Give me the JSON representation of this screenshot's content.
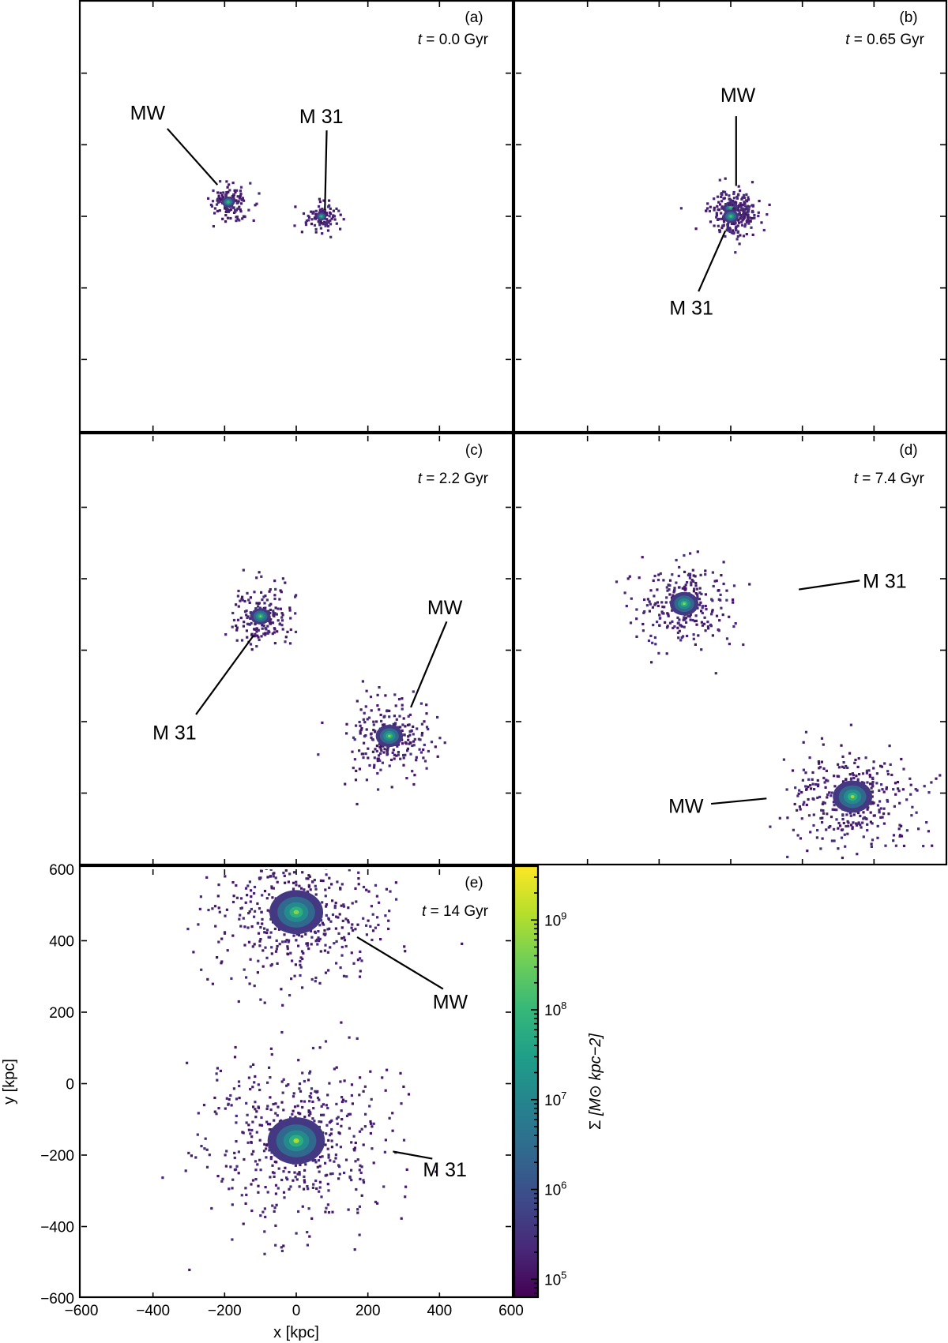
{
  "chart_data": [
    {
      "panel": "a",
      "type": "heatmap",
      "panel_label": "(a)",
      "time_label": "t = 0.0 Gyr",
      "time_var": "t",
      "time_value": "0.0",
      "time_unit": "Gyr",
      "xlim": [
        -600,
        600
      ],
      "ylim": [
        -600,
        600
      ],
      "galaxies": [
        {
          "name": "MW",
          "x": -190,
          "y": 40,
          "extent": 18,
          "peak": 8.0
        },
        {
          "name": "M 31",
          "x": 70,
          "y": 0,
          "extent": 14,
          "peak": 8.0
        }
      ],
      "annotations": [
        {
          "text": "MW",
          "text_x": -415,
          "text_y": 290,
          "line_from": [
            -360,
            245
          ],
          "line_to": [
            -220,
            88
          ]
        },
        {
          "text": "M 31",
          "text_x": 70,
          "text_y": 280,
          "line_from": [
            85,
            240
          ],
          "line_to": [
            80,
            18
          ]
        }
      ]
    },
    {
      "panel": "b",
      "type": "heatmap",
      "panel_label": "(b)",
      "time_label": "t = 0.65 Gyr",
      "time_var": "t",
      "time_value": "0.65",
      "time_unit": "Gyr",
      "xlim": [
        -600,
        600
      ],
      "ylim": [
        -600,
        600
      ],
      "galaxies": [
        {
          "name": "MW",
          "x": 0,
          "y": 25,
          "extent": 20,
          "peak": 8.3
        },
        {
          "name": "M 31",
          "x": 0,
          "y": 0,
          "extent": 22,
          "peak": 8.3
        }
      ],
      "annotations": [
        {
          "text": "MW",
          "text_x": 20,
          "text_y": 340,
          "line_from": [
            15,
            280
          ],
          "line_to": [
            15,
            85
          ]
        },
        {
          "text": "M 31",
          "text_x": -110,
          "text_y": -255,
          "line_from": [
            -90,
            -210
          ],
          "line_to": [
            -15,
            -40
          ]
        }
      ]
    },
    {
      "panel": "c",
      "type": "heatmap",
      "panel_label": "(c)",
      "time_label": "t = 2.2 Gyr",
      "time_var": "t",
      "time_value": "2.2",
      "time_unit": "Gyr",
      "xlim": [
        -600,
        600
      ],
      "ylim": [
        -600,
        600
      ],
      "galaxies": [
        {
          "name": "M 31",
          "x": -100,
          "y": 95,
          "extent": 28,
          "peak": 8.8
        },
        {
          "name": "MW",
          "x": 260,
          "y": -240,
          "extent": 38,
          "peak": 8.8
        }
      ],
      "annotations": [
        {
          "text": "MW",
          "text_x": 415,
          "text_y": 120,
          "line_from": [
            420,
            80
          ],
          "line_to": [
            320,
            -160
          ]
        },
        {
          "text": "M 31",
          "text_x": -340,
          "text_y": -230,
          "line_from": [
            -280,
            -180
          ],
          "line_to": [
            -120,
            40
          ]
        }
      ]
    },
    {
      "panel": "d",
      "type": "heatmap",
      "panel_label": "(d)",
      "time_label": "t = 7.4 Gyr",
      "time_var": "t",
      "time_value": "7.4",
      "time_unit": "Gyr",
      "xlim": [
        -600,
        600
      ],
      "ylim": [
        -600,
        600
      ],
      "galaxies": [
        {
          "name": "M 31",
          "x": -130,
          "y": 130,
          "extent": 40,
          "peak": 8.8
        },
        {
          "name": "MW",
          "x": 340,
          "y": -410,
          "extent": 55,
          "peak": 8.9
        }
      ],
      "annotations": [
        {
          "text": "M 31",
          "text_x": 430,
          "text_y": 195,
          "line_from": [
            360,
            195
          ],
          "line_to": [
            190,
            170
          ]
        },
        {
          "text": "MW",
          "text_x": -125,
          "text_y": -435,
          "line_from": [
            -55,
            -430
          ],
          "line_to": [
            100,
            -415
          ]
        }
      ]
    },
    {
      "panel": "e",
      "type": "heatmap",
      "panel_label": "(e)",
      "time_label": "t = 14 Gyr",
      "time_var": "t",
      "time_value": "14",
      "time_unit": "Gyr",
      "xlabel": "x [kpc]",
      "ylabel": "y [kpc]",
      "xlim": [
        -600,
        600
      ],
      "ylim": [
        -600,
        600
      ],
      "xticks": [
        "−600",
        "−400",
        "−200",
        "0",
        "200",
        "400",
        "600"
      ],
      "yticks": [
        "−600",
        "−400",
        "−200",
        "0",
        "200",
        "400",
        "600"
      ],
      "galaxies": [
        {
          "name": "MW",
          "x": 0,
          "y": 480,
          "extent": 75,
          "peak": 8.7
        },
        {
          "name": "M 31",
          "x": 0,
          "y": -160,
          "extent": 80,
          "peak": 9.0
        }
      ],
      "annotations": [
        {
          "text": "MW",
          "text_x": 430,
          "text_y": 230,
          "line_from": [
            410,
            265
          ],
          "line_to": [
            170,
            410
          ]
        },
        {
          "text": "M 31",
          "text_x": 415,
          "text_y": -240,
          "line_from": [
            380,
            -210
          ],
          "line_to": [
            270,
            -190
          ]
        }
      ]
    }
  ],
  "colorbar": {
    "colormap": "viridis",
    "label": "Σ  [M⊙ kpc⁻²]",
    "label_symbol": "Σ",
    "label_units": "[M⊙ kpc−2]",
    "log_min": 4.8,
    "log_max": 9.6,
    "ticks": [
      {
        "base": "10",
        "exp": "5",
        "log": 5
      },
      {
        "base": "10",
        "exp": "6",
        "log": 6
      },
      {
        "base": "10",
        "exp": "7",
        "log": 7
      },
      {
        "base": "10",
        "exp": "8",
        "log": 8
      },
      {
        "base": "10",
        "exp": "9",
        "log": 9
      }
    ],
    "viridis_stops": [
      "#440154",
      "#482878",
      "#3e4989",
      "#31688e",
      "#26828e",
      "#1f9e89",
      "#35b779",
      "#6ece58",
      "#b5de2b",
      "#fde725"
    ]
  }
}
